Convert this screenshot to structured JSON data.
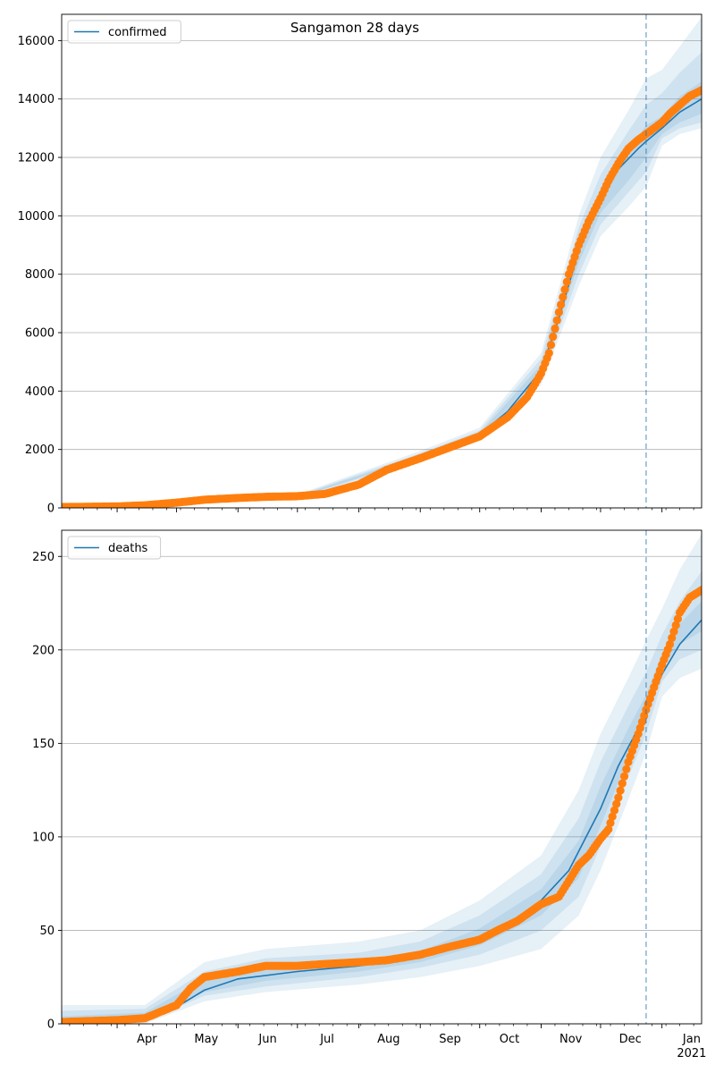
{
  "figure": {
    "title": "Sangamon 28 days",
    "colors": {
      "model": "#1f77b4",
      "observed": "#ff7f0e",
      "band": "#1f77b4",
      "grid": "#b0b0b0",
      "forecast_line": "#1f77b4"
    }
  },
  "chart_data": [
    {
      "type": "line",
      "subplot": "top",
      "title": "Sangamon 28 days",
      "legend": {
        "entries": [
          "confirmed"
        ],
        "placement": "top-left"
      },
      "xlabel": "",
      "ylabel": "",
      "xlim": [
        "2020-03-04",
        "2021-01-21"
      ],
      "ylim": [
        0,
        16900
      ],
      "y_ticks": [
        0,
        2000,
        4000,
        6000,
        8000,
        10000,
        12000,
        14000,
        16000
      ],
      "x_ticks_labelled": false,
      "grid": "y",
      "forecast_start": "2020-12-24",
      "series": [
        {
          "name": "confirmed",
          "kind": "model",
          "x": [
            "2020-03-04",
            "2020-04-01",
            "2020-05-01",
            "2020-06-01",
            "2020-07-01",
            "2020-08-01",
            "2020-09-01",
            "2020-10-01",
            "2020-10-15",
            "2020-11-01",
            "2020-11-10",
            "2020-11-20",
            "2020-12-01",
            "2020-12-10",
            "2020-12-20",
            "2020-12-24",
            "2021-01-01",
            "2021-01-10",
            "2021-01-21"
          ],
          "y": [
            20,
            40,
            120,
            300,
            380,
            700,
            1750,
            2500,
            3300,
            4700,
            6500,
            8800,
            10500,
            11600,
            12300,
            12550,
            13000,
            13550,
            14000
          ]
        },
        {
          "name": "confirmed",
          "kind": "observed",
          "x": [
            "2020-03-04",
            "2020-04-01",
            "2020-04-15",
            "2020-05-01",
            "2020-05-15",
            "2020-06-01",
            "2020-06-15",
            "2020-07-01",
            "2020-07-15",
            "2020-08-01",
            "2020-08-15",
            "2020-09-01",
            "2020-09-15",
            "2020-10-01",
            "2020-10-15",
            "2020-10-25",
            "2020-11-01",
            "2020-11-05",
            "2020-11-10",
            "2020-11-15",
            "2020-11-20",
            "2020-11-25",
            "2020-12-01",
            "2020-12-05",
            "2020-12-10",
            "2020-12-15",
            "2020-12-20",
            "2020-12-24",
            "2021-01-01",
            "2021-01-05",
            "2021-01-10",
            "2021-01-15",
            "2021-01-21"
          ],
          "y": [
            30,
            50,
            90,
            180,
            280,
            340,
            380,
            400,
            480,
            800,
            1300,
            1700,
            2050,
            2450,
            3100,
            3800,
            4600,
            5300,
            6700,
            8000,
            9000,
            9800,
            10600,
            11200,
            11800,
            12300,
            12600,
            12800,
            13200,
            13500,
            13800,
            14100,
            14300
          ]
        }
      ],
      "uncertainty_bands": [
        {
          "level": "outer",
          "x": [
            "2020-03-04",
            "2020-07-01",
            "2020-09-01",
            "2020-10-01",
            "2020-11-01",
            "2020-11-20",
            "2020-12-01",
            "2020-12-15",
            "2020-12-24",
            "2021-01-01",
            "2021-01-10",
            "2021-01-21"
          ],
          "lower": [
            0,
            300,
            1600,
            2300,
            4200,
            7600,
            9300,
            10300,
            11000,
            12400,
            12800,
            13000
          ],
          "upper": [
            60,
            460,
            1950,
            2750,
            5300,
            10000,
            12000,
            13600,
            14700,
            15000,
            15800,
            16800
          ]
        },
        {
          "level": "middle",
          "x": [
            "2020-03-04",
            "2020-07-01",
            "2020-09-01",
            "2020-10-01",
            "2020-11-01",
            "2020-11-20",
            "2020-12-01",
            "2020-12-15",
            "2020-12-24",
            "2021-01-01",
            "2021-01-10",
            "2021-01-21"
          ],
          "lower": [
            5,
            330,
            1650,
            2380,
            4350,
            8000,
            9700,
            10800,
            11500,
            12650,
            13000,
            13200
          ],
          "upper": [
            45,
            430,
            1870,
            2650,
            5100,
            9600,
            11400,
            12900,
            13800,
            14200,
            14900,
            15600
          ]
        },
        {
          "level": "inner",
          "x": [
            "2020-03-04",
            "2020-07-01",
            "2020-09-01",
            "2020-10-01",
            "2020-11-01",
            "2020-11-20",
            "2020-12-01",
            "2020-12-15",
            "2020-12-24",
            "2021-01-01",
            "2021-01-10",
            "2021-01-21"
          ],
          "lower": [
            10,
            355,
            1700,
            2440,
            4500,
            8400,
            10100,
            11200,
            12000,
            12800,
            13200,
            13500
          ],
          "upper": [
            35,
            405,
            1800,
            2560,
            4900,
            9200,
            10900,
            12200,
            13100,
            13400,
            14100,
            14600
          ]
        }
      ]
    },
    {
      "type": "line",
      "subplot": "bottom",
      "legend": {
        "entries": [
          "deaths"
        ],
        "placement": "top-left"
      },
      "xlabel": "",
      "ylabel": "",
      "xlim": [
        "2020-03-04",
        "2021-01-21"
      ],
      "ylim": [
        0,
        264
      ],
      "y_ticks": [
        0,
        50,
        100,
        150,
        200,
        250
      ],
      "x_ticks": [
        {
          "date": "2020-04-01",
          "label": "Apr"
        },
        {
          "date": "2020-05-01",
          "label": "May"
        },
        {
          "date": "2020-06-01",
          "label": "Jun"
        },
        {
          "date": "2020-07-01",
          "label": "Jul"
        },
        {
          "date": "2020-08-01",
          "label": "Aug"
        },
        {
          "date": "2020-09-01",
          "label": "Sep"
        },
        {
          "date": "2020-10-01",
          "label": "Oct"
        },
        {
          "date": "2020-11-01",
          "label": "Nov"
        },
        {
          "date": "2020-12-01",
          "label": "Dec"
        },
        {
          "date": "2021-01-01",
          "label": "Jan",
          "sublabel": "2021"
        }
      ],
      "grid": "y",
      "forecast_start": "2020-12-24",
      "series": [
        {
          "name": "deaths",
          "kind": "model",
          "x": [
            "2020-03-04",
            "2020-04-01",
            "2020-04-20",
            "2020-05-01",
            "2020-05-15",
            "2020-06-01",
            "2020-07-01",
            "2020-08-01",
            "2020-09-01",
            "2020-10-01",
            "2020-10-15",
            "2020-11-01",
            "2020-11-15",
            "2020-12-01",
            "2020-12-10",
            "2020-12-20",
            "2020-12-24",
            "2021-01-01",
            "2021-01-10",
            "2021-01-21"
          ],
          "y": [
            0,
            1,
            4,
            9,
            18,
            24,
            28,
            31,
            36,
            46,
            53,
            66,
            82,
            115,
            138,
            158,
            167,
            187,
            203,
            216
          ]
        },
        {
          "name": "deaths",
          "kind": "observed",
          "x": [
            "2020-03-04",
            "2020-04-01",
            "2020-04-15",
            "2020-05-01",
            "2020-05-08",
            "2020-05-15",
            "2020-06-01",
            "2020-06-15",
            "2020-07-01",
            "2020-07-15",
            "2020-08-01",
            "2020-08-15",
            "2020-09-01",
            "2020-09-15",
            "2020-10-01",
            "2020-10-10",
            "2020-10-20",
            "2020-11-01",
            "2020-11-10",
            "2020-11-20",
            "2020-11-25",
            "2020-12-01",
            "2020-12-05",
            "2020-12-10",
            "2020-12-15",
            "2020-12-20",
            "2020-12-24",
            "2020-12-28",
            "2021-01-01",
            "2021-01-05",
            "2021-01-10",
            "2021-01-15",
            "2021-01-21"
          ],
          "y": [
            1,
            2,
            3,
            10,
            19,
            25,
            28,
            31,
            31,
            32,
            33,
            34,
            37,
            41,
            45,
            50,
            55,
            64,
            68,
            85,
            90,
            99,
            104,
            121,
            140,
            155,
            168,
            180,
            192,
            203,
            220,
            228,
            232
          ]
        }
      ],
      "uncertainty_bands": [
        {
          "level": "outer",
          "x": [
            "2020-03-04",
            "2020-04-15",
            "2020-05-15",
            "2020-06-15",
            "2020-08-01",
            "2020-09-01",
            "2020-10-01",
            "2020-11-01",
            "2020-11-20",
            "2020-12-01",
            "2020-12-15",
            "2020-12-24",
            "2021-01-01",
            "2021-01-10",
            "2021-01-21"
          ],
          "lower": [
            0,
            0,
            12,
            17,
            21,
            25,
            31,
            40,
            58,
            82,
            120,
            145,
            175,
            185,
            190
          ],
          "upper": [
            10,
            10,
            33,
            40,
            44,
            50,
            66,
            90,
            125,
            155,
            185,
            205,
            222,
            243,
            262
          ]
        },
        {
          "level": "middle",
          "x": [
            "2020-03-04",
            "2020-04-15",
            "2020-05-15",
            "2020-06-15",
            "2020-08-01",
            "2020-09-01",
            "2020-10-01",
            "2020-11-01",
            "2020-11-20",
            "2020-12-01",
            "2020-12-15",
            "2020-12-24",
            "2021-01-01",
            "2021-01-10",
            "2021-01-21"
          ],
          "lower": [
            0,
            1,
            15,
            20,
            25,
            30,
            37,
            50,
            68,
            95,
            132,
            155,
            183,
            195,
            200
          ],
          "upper": [
            7,
            8,
            28,
            35,
            38,
            44,
            58,
            80,
            110,
            140,
            170,
            188,
            208,
            226,
            242
          ]
        },
        {
          "level": "inner",
          "x": [
            "2020-03-04",
            "2020-04-15",
            "2020-05-15",
            "2020-06-15",
            "2020-08-01",
            "2020-09-01",
            "2020-10-01",
            "2020-11-01",
            "2020-11-20",
            "2020-12-01",
            "2020-12-15",
            "2020-12-24",
            "2021-01-01",
            "2021-01-10",
            "2021-01-21"
          ],
          "lower": [
            0,
            2,
            17,
            23,
            28,
            33,
            42,
            58,
            78,
            106,
            142,
            162,
            190,
            203,
            210
          ],
          "upper": [
            4,
            6,
            24,
            30,
            34,
            39,
            51,
            72,
            98,
            127,
            158,
            176,
            198,
            214,
            226
          ]
        }
      ]
    }
  ]
}
